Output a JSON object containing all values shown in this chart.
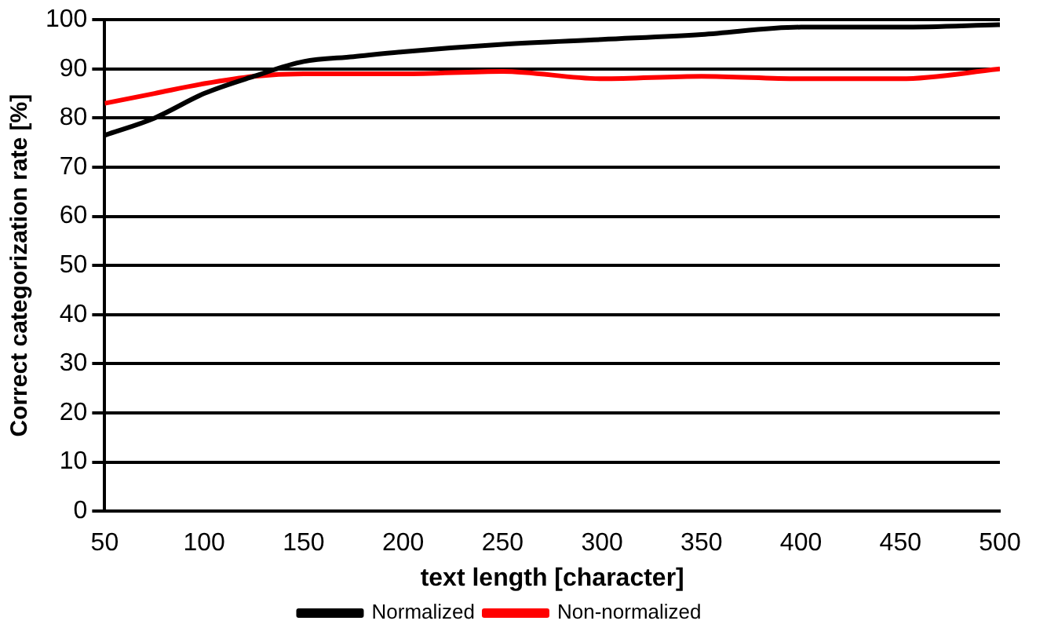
{
  "chart_data": {
    "type": "line",
    "xlabel": "text length [character]",
    "ylabel": "Correct categorization rate [%]",
    "x": [
      50,
      75,
      100,
      125,
      150,
      175,
      200,
      250,
      300,
      350,
      400,
      450,
      500
    ],
    "series": [
      {
        "name": "Normalized",
        "color": "#000000",
        "values": [
          76.5,
          80,
          85,
          88.5,
          91.5,
          92.5,
          93.5,
          95,
          96,
          97,
          98.5,
          98.5,
          99
        ]
      },
      {
        "name": "Non-normalized",
        "color": "#ff0000",
        "values": [
          83,
          85,
          87,
          88.5,
          89,
          89,
          89,
          89.5,
          88,
          88.5,
          88,
          88,
          90
        ]
      }
    ],
    "xlim": [
      50,
      500
    ],
    "xticks": [
      50,
      100,
      150,
      200,
      250,
      300,
      350,
      400,
      450,
      500
    ],
    "ylim": [
      0,
      100
    ],
    "yticks": [
      0,
      10,
      20,
      30,
      40,
      50,
      60,
      70,
      80,
      90,
      100
    ],
    "grid": "y",
    "legend": "bottom",
    "marker": "none",
    "line_style": "solid"
  }
}
